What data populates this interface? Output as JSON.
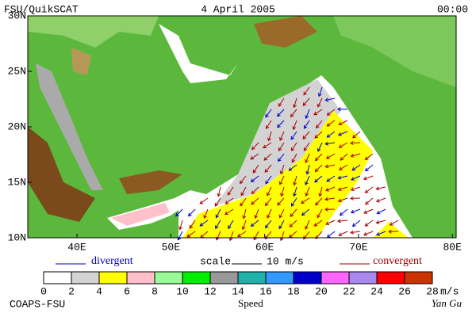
{
  "header": {
    "left": "FSU/QuikSCAT",
    "center": "4 April 2005",
    "right": "00:00"
  },
  "map": {
    "lat_labels": [
      "30N",
      "25N",
      "20N",
      "15N",
      "10N"
    ],
    "lon_labels": [
      "40E",
      "50E",
      "60E",
      "70E",
      "80E"
    ]
  },
  "legend": {
    "divergent": "divergent",
    "scale": "scale",
    "scale_value": "10 m/s",
    "convergent": "convergent",
    "divergent_color": "#0000cc",
    "convergent_color": "#aa0000"
  },
  "colorbar": {
    "labels": [
      0,
      2,
      4,
      6,
      8,
      10,
      12,
      14,
      16,
      18,
      20,
      22,
      24,
      26,
      28
    ],
    "unit": "m/s",
    "title": "Speed",
    "colors": [
      "#ffffff",
      "#d3d3d3",
      "#ffff00",
      "#ffc0cb",
      "#98fb98",
      "#00ee00",
      "#999999",
      "#20b2aa",
      "#3399ff",
      "#0000cd",
      "#ff66ff",
      "#aa88ee",
      "#ff0000",
      "#cc3300",
      "#000000"
    ]
  },
  "footer": {
    "left": "COAPS-FSU",
    "right": "Yan Gu"
  }
}
